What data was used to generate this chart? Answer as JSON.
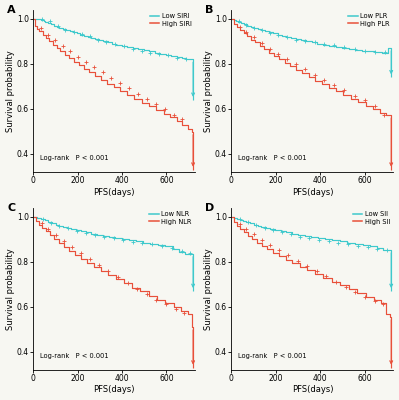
{
  "panels": [
    "A",
    "B",
    "C",
    "D"
  ],
  "index_names": [
    "SIRI",
    "PLR",
    "NLR",
    "SII"
  ],
  "low_color": "#3ec9cc",
  "high_color": "#e8503a",
  "xlabel": "PFS(days)",
  "ylabel": "Survival probability",
  "pvalue_text": "Log-rank   P < 0.001",
  "xlim": [
    0,
    730
  ],
  "ylim": [
    0.32,
    1.04
  ],
  "xticks": [
    0,
    200,
    400,
    600
  ],
  "yticks": [
    0.4,
    0.6,
    0.8,
    1.0
  ],
  "bg_color": "#f7f7f2",
  "low_curves": {
    "A": {
      "x": [
        0,
        8,
        15,
        22,
        35,
        48,
        55,
        68,
        82,
        95,
        105,
        118,
        132,
        148,
        165,
        180,
        195,
        210,
        228,
        245,
        262,
        278,
        295,
        315,
        335,
        355,
        375,
        398,
        422,
        448,
        472,
        498,
        522,
        548,
        572,
        598,
        622,
        648,
        668,
        688,
        705,
        720
      ],
      "y": [
        1.0,
        1.0,
        1.0,
        1.0,
        0.995,
        0.99,
        0.985,
        0.98,
        0.975,
        0.97,
        0.965,
        0.96,
        0.955,
        0.95,
        0.945,
        0.94,
        0.935,
        0.93,
        0.925,
        0.92,
        0.915,
        0.91,
        0.905,
        0.9,
        0.895,
        0.89,
        0.885,
        0.88,
        0.875,
        0.87,
        0.865,
        0.86,
        0.855,
        0.85,
        0.845,
        0.84,
        0.835,
        0.83,
        0.825,
        0.82,
        0.82,
        0.64
      ]
    },
    "B": {
      "x": [
        0,
        12,
        22,
        32,
        45,
        58,
        72,
        88,
        102,
        118,
        135,
        152,
        170,
        188,
        208,
        228,
        248,
        270,
        292,
        315,
        338,
        362,
        388,
        415,
        442,
        470,
        498,
        528,
        558,
        588,
        618,
        648,
        678,
        705,
        720
      ],
      "y": [
        1.0,
        0.995,
        0.99,
        0.985,
        0.98,
        0.975,
        0.97,
        0.965,
        0.96,
        0.955,
        0.95,
        0.945,
        0.94,
        0.935,
        0.93,
        0.925,
        0.92,
        0.915,
        0.91,
        0.905,
        0.9,
        0.895,
        0.89,
        0.885,
        0.88,
        0.875,
        0.87,
        0.865,
        0.86,
        0.856,
        0.855,
        0.852,
        0.85,
        0.87,
        0.74
      ]
    },
    "C": {
      "x": [
        0,
        18,
        35,
        52,
        68,
        85,
        102,
        118,
        135,
        152,
        172,
        192,
        215,
        238,
        262,
        288,
        315,
        342,
        370,
        400,
        430,
        462,
        495,
        528,
        562,
        595,
        628,
        658,
        685,
        710,
        720
      ],
      "y": [
        1.0,
        0.995,
        0.99,
        0.985,
        0.975,
        0.97,
        0.965,
        0.96,
        0.955,
        0.95,
        0.945,
        0.94,
        0.935,
        0.93,
        0.925,
        0.92,
        0.915,
        0.91,
        0.905,
        0.9,
        0.895,
        0.89,
        0.885,
        0.88,
        0.875,
        0.87,
        0.855,
        0.845,
        0.835,
        0.835,
        0.67
      ]
    },
    "D": {
      "x": [
        0,
        12,
        25,
        38,
        52,
        68,
        85,
        102,
        118,
        135,
        155,
        175,
        198,
        222,
        248,
        275,
        302,
        330,
        360,
        390,
        422,
        455,
        488,
        522,
        558,
        592,
        625,
        658,
        685,
        708,
        720
      ],
      "y": [
        1.0,
        0.995,
        0.99,
        0.985,
        0.98,
        0.975,
        0.97,
        0.965,
        0.96,
        0.955,
        0.95,
        0.945,
        0.94,
        0.935,
        0.93,
        0.925,
        0.92,
        0.915,
        0.91,
        0.905,
        0.9,
        0.895,
        0.89,
        0.885,
        0.88,
        0.875,
        0.87,
        0.86,
        0.852,
        0.852,
        0.67
      ]
    }
  },
  "high_curves": {
    "A": {
      "x": [
        0,
        8,
        18,
        28,
        42,
        58,
        72,
        88,
        105,
        122,
        142,
        162,
        182,
        205,
        228,
        252,
        278,
        305,
        332,
        362,
        392,
        422,
        455,
        488,
        522,
        555,
        588,
        618,
        648,
        672,
        695,
        715,
        720
      ],
      "y": [
        1.0,
        0.97,
        0.955,
        0.945,
        0.93,
        0.915,
        0.9,
        0.885,
        0.87,
        0.855,
        0.84,
        0.825,
        0.81,
        0.795,
        0.778,
        0.762,
        0.745,
        0.728,
        0.712,
        0.695,
        0.678,
        0.662,
        0.645,
        0.628,
        0.612,
        0.595,
        0.578,
        0.562,
        0.545,
        0.528,
        0.512,
        0.498,
        0.33
      ]
    },
    "B": {
      "x": [
        0,
        12,
        25,
        40,
        56,
        72,
        90,
        108,
        128,
        148,
        170,
        192,
        215,
        240,
        265,
        292,
        320,
        348,
        378,
        408,
        440,
        472,
        505,
        538,
        572,
        605,
        638,
        668,
        695,
        715,
        720
      ],
      "y": [
        1.0,
        0.975,
        0.962,
        0.948,
        0.935,
        0.922,
        0.908,
        0.895,
        0.88,
        0.865,
        0.85,
        0.835,
        0.82,
        0.805,
        0.79,
        0.774,
        0.758,
        0.742,
        0.726,
        0.71,
        0.694,
        0.678,
        0.662,
        0.646,
        0.63,
        0.614,
        0.598,
        0.582,
        0.572,
        0.572,
        0.33
      ]
    },
    "C": {
      "x": [
        0,
        12,
        25,
        40,
        56,
        75,
        95,
        115,
        138,
        162,
        188,
        215,
        242,
        272,
        305,
        338,
        372,
        408,
        445,
        482,
        520,
        558,
        595,
        632,
        665,
        695,
        715,
        720
      ],
      "y": [
        1.0,
        0.98,
        0.965,
        0.95,
        0.935,
        0.918,
        0.9,
        0.882,
        0.865,
        0.848,
        0.83,
        0.812,
        0.794,
        0.776,
        0.758,
        0.74,
        0.722,
        0.704,
        0.685,
        0.668,
        0.65,
        0.632,
        0.615,
        0.598,
        0.582,
        0.568,
        0.51,
        0.33
      ]
    },
    "D": {
      "x": [
        0,
        12,
        25,
        40,
        56,
        75,
        95,
        115,
        138,
        162,
        188,
        215,
        245,
        275,
        308,
        342,
        378,
        415,
        452,
        490,
        528,
        568,
        605,
        642,
        672,
        698,
        715,
        720
      ],
      "y": [
        1.0,
        0.975,
        0.96,
        0.945,
        0.93,
        0.915,
        0.9,
        0.885,
        0.87,
        0.855,
        0.84,
        0.825,
        0.81,
        0.795,
        0.778,
        0.762,
        0.745,
        0.728,
        0.712,
        0.695,
        0.678,
        0.662,
        0.645,
        0.63,
        0.615,
        0.568,
        0.555,
        0.33
      ]
    }
  },
  "censor_low_A": {
    "x": [
      40,
      75,
      110,
      145,
      182,
      218,
      255,
      292,
      330,
      368,
      408,
      448,
      488,
      528,
      568,
      608,
      648,
      688
    ],
    "y": [
      0.997,
      0.988,
      0.97,
      0.952,
      0.942,
      0.932,
      0.922,
      0.908,
      0.898,
      0.888,
      0.878,
      0.868,
      0.858,
      0.848,
      0.843,
      0.838,
      0.828,
      0.822
    ]
  },
  "censor_low_B": {
    "x": [
      35,
      68,
      102,
      138,
      175,
      212,
      252,
      292,
      332,
      375,
      418,
      462,
      508,
      555,
      602,
      648,
      692
    ],
    "y": [
      0.988,
      0.972,
      0.958,
      0.948,
      0.938,
      0.928,
      0.918,
      0.908,
      0.902,
      0.895,
      0.888,
      0.882,
      0.875,
      0.868,
      0.858,
      0.853,
      0.852
    ]
  },
  "censor_low_C": {
    "x": [
      45,
      82,
      118,
      158,
      198,
      238,
      278,
      320,
      362,
      405,
      448,
      492,
      536,
      580,
      625,
      668,
      705
    ],
    "y": [
      0.988,
      0.972,
      0.958,
      0.948,
      0.938,
      0.928,
      0.92,
      0.912,
      0.905,
      0.898,
      0.888,
      0.882,
      0.878,
      0.872,
      0.862,
      0.848,
      0.838
    ]
  },
  "censor_low_D": {
    "x": [
      40,
      75,
      112,
      150,
      188,
      228,
      268,
      310,
      352,
      395,
      438,
      482,
      526,
      570,
      615,
      658,
      700
    ],
    "y": [
      0.988,
      0.975,
      0.962,
      0.952,
      0.942,
      0.932,
      0.922,
      0.912,
      0.905,
      0.898,
      0.892,
      0.885,
      0.878,
      0.872,
      0.865,
      0.858,
      0.852
    ]
  },
  "censor_high_A": {
    "x": [
      35,
      65,
      98,
      132,
      165,
      200,
      238,
      275,
      312,
      352,
      392,
      432,
      472,
      512,
      552,
      592,
      632,
      668
    ],
    "y": [
      0.96,
      0.93,
      0.905,
      0.878,
      0.855,
      0.832,
      0.808,
      0.785,
      0.762,
      0.738,
      0.715,
      0.692,
      0.668,
      0.645,
      0.622,
      0.598,
      0.575,
      0.553
    ]
  },
  "censor_high_B": {
    "x": [
      38,
      68,
      102,
      138,
      175,
      212,
      252,
      292,
      332,
      375,
      418,
      462,
      508,
      555,
      602,
      645,
      688
    ],
    "y": [
      0.965,
      0.942,
      0.918,
      0.892,
      0.868,
      0.845,
      0.822,
      0.798,
      0.775,
      0.752,
      0.728,
      0.705,
      0.682,
      0.658,
      0.638,
      0.615,
      0.575
    ]
  },
  "censor_high_C": {
    "x": [
      38,
      68,
      102,
      138,
      175,
      215,
      255,
      295,
      338,
      382,
      425,
      468,
      512,
      555,
      598,
      642,
      680
    ],
    "y": [
      0.97,
      0.945,
      0.918,
      0.892,
      0.865,
      0.838,
      0.812,
      0.785,
      0.758,
      0.732,
      0.705,
      0.678,
      0.655,
      0.632,
      0.612,
      0.592,
      0.572
    ]
  },
  "censor_high_D": {
    "x": [
      38,
      68,
      102,
      138,
      175,
      215,
      255,
      298,
      342,
      385,
      428,
      472,
      515,
      558,
      602,
      645,
      682
    ],
    "y": [
      0.968,
      0.945,
      0.922,
      0.898,
      0.875,
      0.852,
      0.828,
      0.805,
      0.782,
      0.758,
      0.735,
      0.712,
      0.688,
      0.665,
      0.645,
      0.628,
      0.612
    ]
  }
}
